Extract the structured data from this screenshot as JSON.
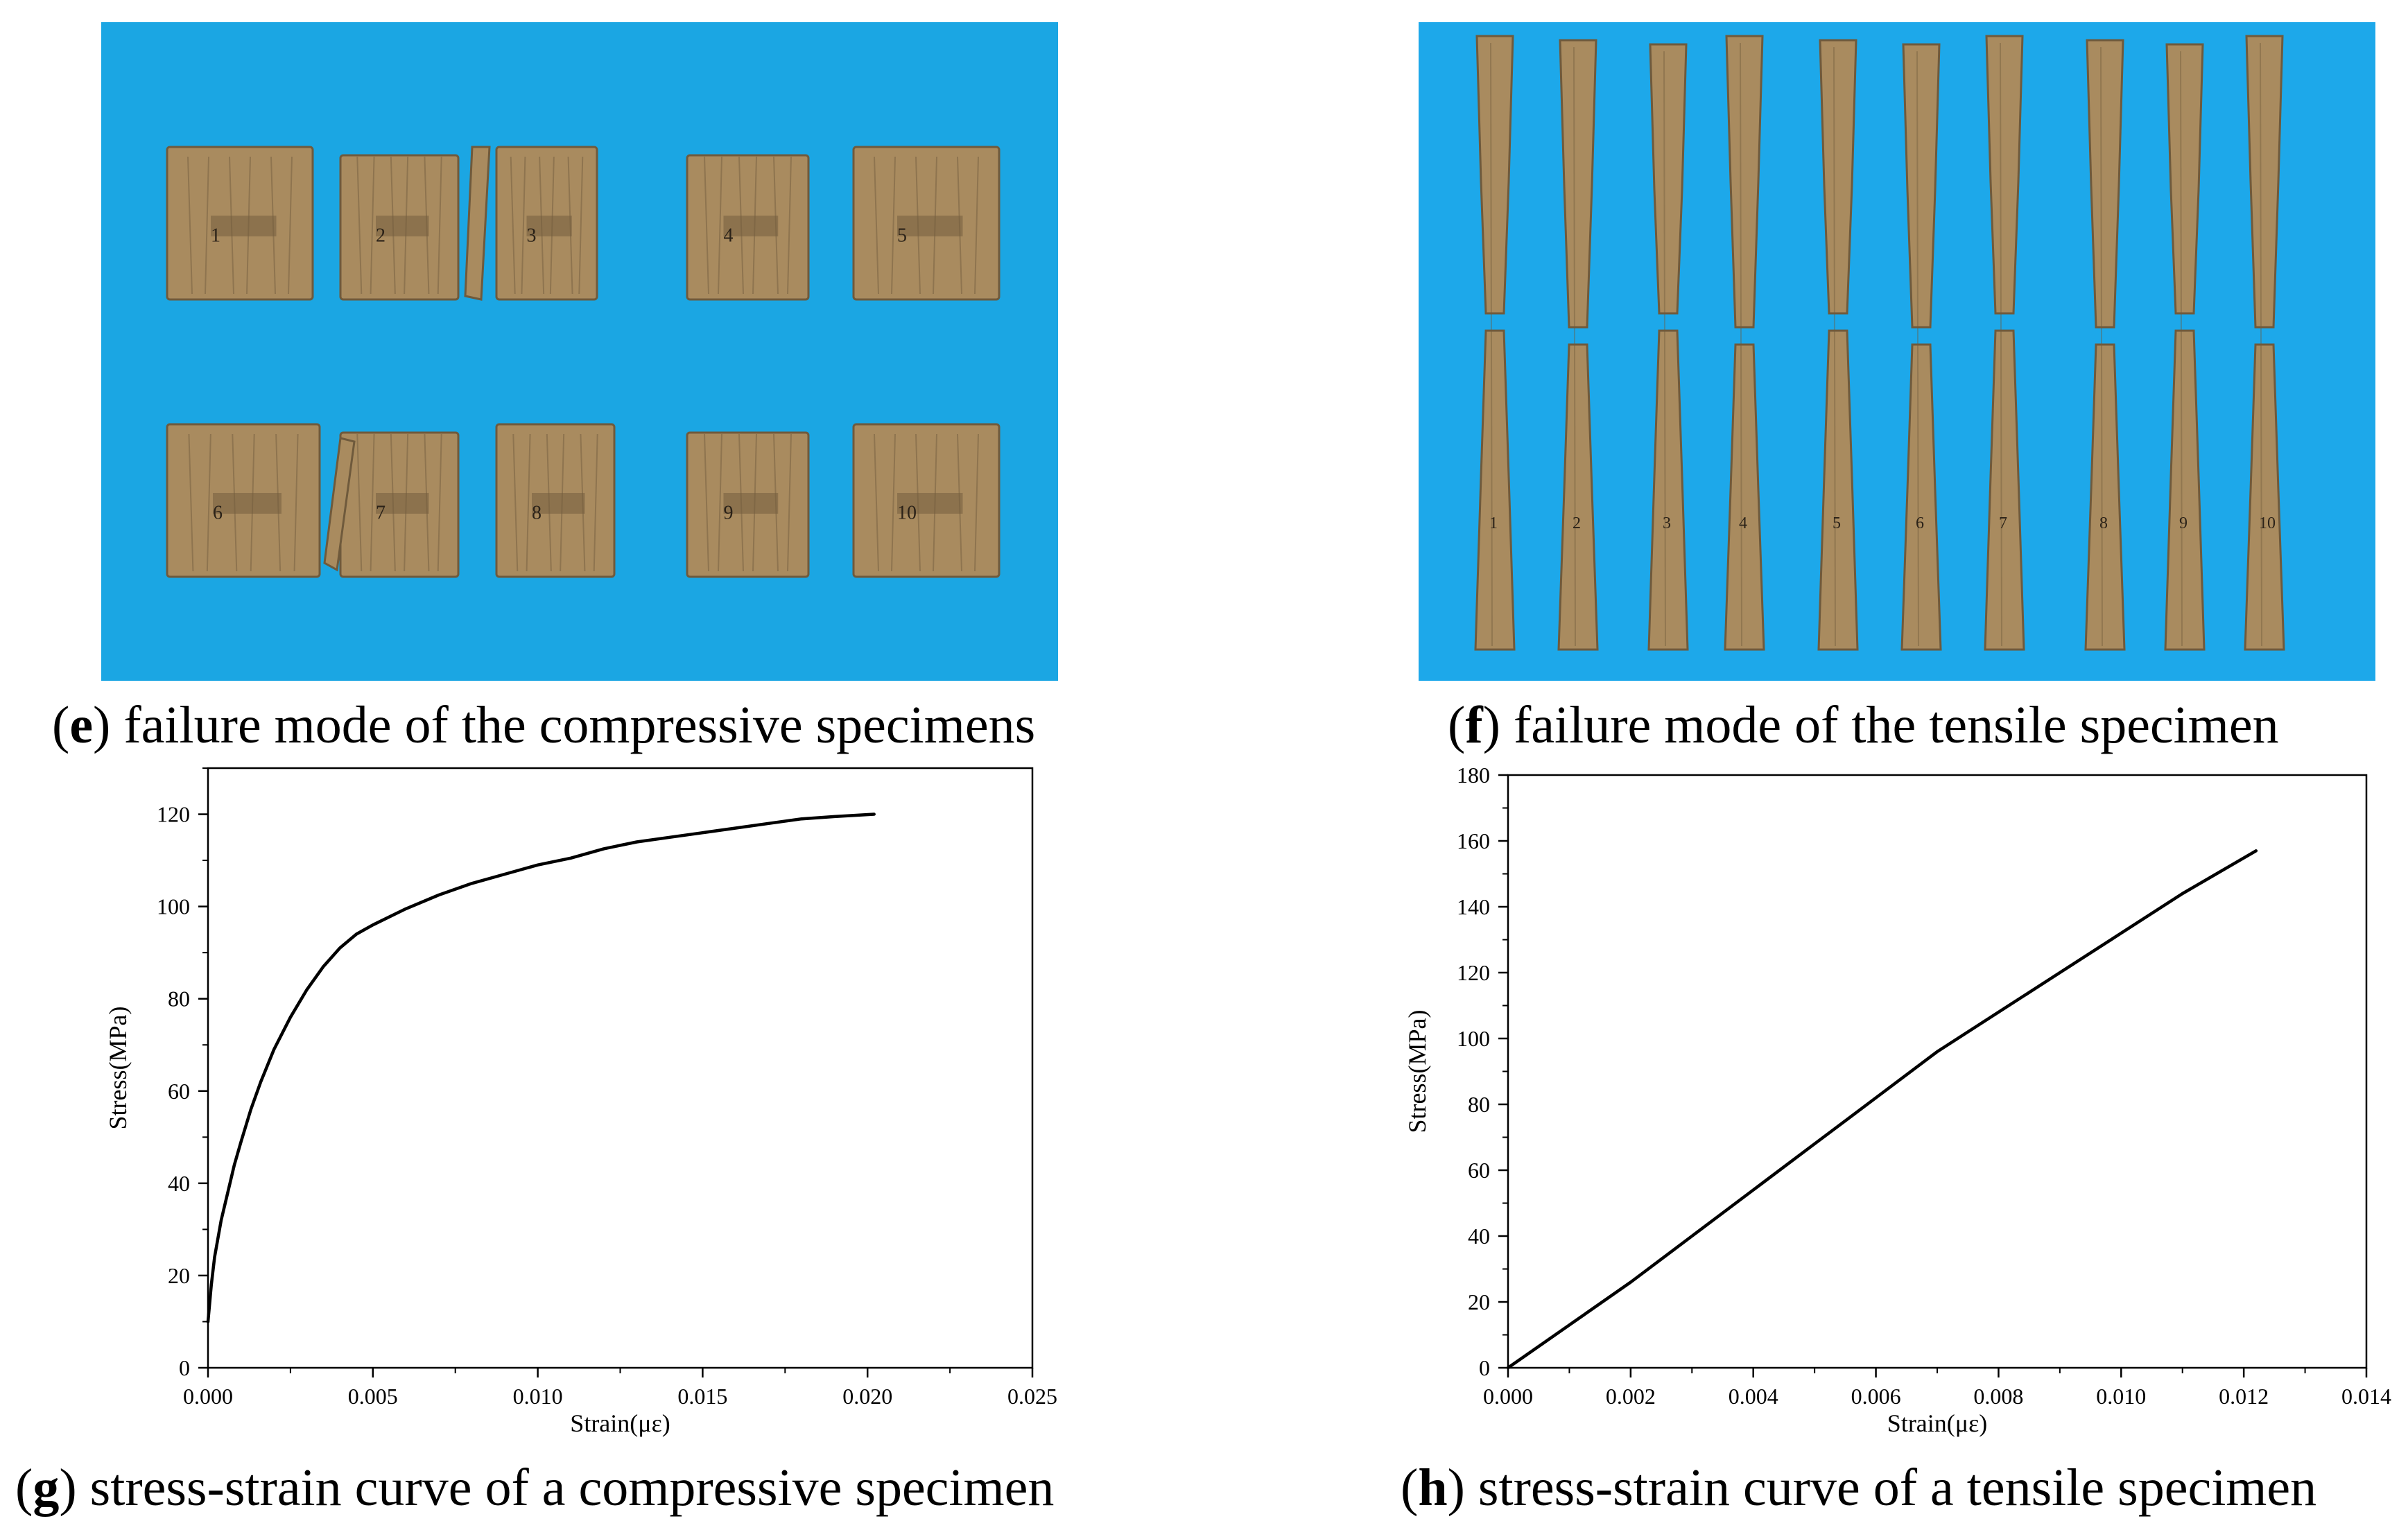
{
  "panels": {
    "e": {
      "letter": "e",
      "caption": " failure mode of the compressive specimens",
      "background_color": "#1ba6e3",
      "specimen_labels": [
        "1",
        "2",
        "3",
        "4",
        "5",
        "6",
        "7",
        "8",
        "9",
        "10"
      ]
    },
    "f": {
      "letter": "f",
      "caption": " failure mode of the tensile specimen",
      "background_color": "#1da8ea",
      "specimen_labels": [
        "1",
        "2",
        "3",
        "4",
        "5",
        "6",
        "7",
        "8",
        "9",
        "10"
      ]
    },
    "g": {
      "letter": "g",
      "caption": " stress-strain curve of a compressive specimen"
    },
    "h": {
      "letter": "h",
      "caption": " stress-strain curve of a tensile specimen"
    }
  },
  "colors": {
    "wood": "#a98b5f",
    "wood_dark": "#6f5a3c",
    "curve": "#000000"
  },
  "chart_data": [
    {
      "id": "g",
      "type": "line",
      "xlabel": "Strain(με)",
      "ylabel": "Stress(MPa)",
      "xlim": [
        0,
        0.025
      ],
      "ylim": [
        0,
        130
      ],
      "xticks": [
        "0.000",
        "0.005",
        "0.010",
        "0.015",
        "0.020",
        "0.025"
      ],
      "yticks": [
        "0",
        "20",
        "40",
        "60",
        "80",
        "100",
        "120"
      ],
      "grid": false,
      "x": [
        0,
        0.0001,
        0.0002,
        0.0004,
        0.0006,
        0.0008,
        0.001,
        0.0013,
        0.0016,
        0.002,
        0.0025,
        0.003,
        0.0035,
        0.004,
        0.0045,
        0.005,
        0.006,
        0.007,
        0.008,
        0.009,
        0.01,
        0.011,
        0.012,
        0.013,
        0.014,
        0.015,
        0.016,
        0.017,
        0.018,
        0.019,
        0.0202
      ],
      "y": [
        10,
        18,
        24,
        32,
        38,
        44,
        49,
        56,
        62,
        69,
        76,
        82,
        87,
        91,
        94,
        96,
        99.5,
        102.5,
        105,
        107,
        109,
        110.5,
        112.5,
        114,
        115,
        116,
        117,
        118,
        119,
        119.5,
        120
      ]
    },
    {
      "id": "h",
      "type": "line",
      "xlabel": "Strain(με)",
      "ylabel": "Stress(MPa)",
      "xlim": [
        0,
        0.014
      ],
      "ylim": [
        0,
        180
      ],
      "xticks": [
        "0.000",
        "0.002",
        "0.004",
        "0.006",
        "0.008",
        "0.010",
        "0.012",
        "0.014"
      ],
      "yticks": [
        "0",
        "20",
        "40",
        "60",
        "80",
        "100",
        "120",
        "140",
        "160",
        "180"
      ],
      "grid": false,
      "x": [
        0,
        0.001,
        0.002,
        0.003,
        0.004,
        0.005,
        0.006,
        0.007,
        0.008,
        0.009,
        0.01,
        0.011,
        0.0122
      ],
      "y": [
        0,
        13,
        26,
        40,
        54,
        68,
        82,
        96,
        108,
        120,
        132,
        144,
        157
      ]
    }
  ]
}
